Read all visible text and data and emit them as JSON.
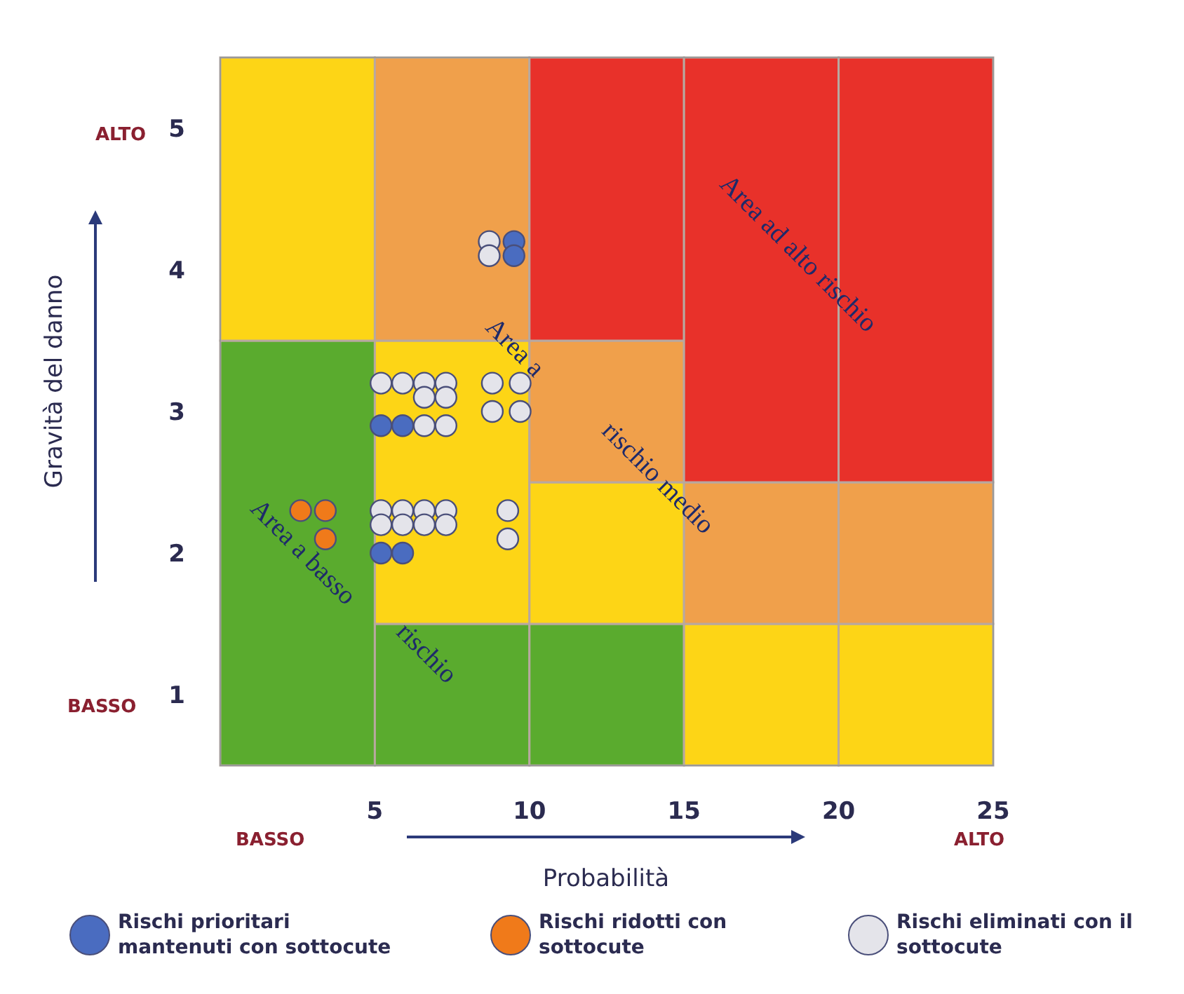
{
  "chart_data": {
    "type": "scatter",
    "xlabel": "Probabilità",
    "ylabel": "Gravità del danno",
    "xlim": [
      0,
      25
    ],
    "xticks": [
      5,
      10,
      15,
      20,
      25
    ],
    "ylim": [
      0.5,
      5.5
    ],
    "yticks": [
      1,
      2,
      3,
      4,
      5
    ],
    "marker": "circle",
    "legend": "bottom",
    "series": [
      {
        "type": "bar",
        "color": "#5aab2e",
        "x": [
          2.5,
          7.5,
          12.5
        ],
        "base": [
          0.5,
          0.5,
          0.5
        ],
        "values": [
          3,
          1,
          1
        ]
      },
      {
        "type": "bar",
        "color": "#fdd516",
        "x": [
          2.5,
          7.5,
          12.5,
          17.5,
          22.5
        ],
        "base": [
          3.5,
          1.5,
          1.5,
          0.5,
          0.5
        ],
        "values": [
          2,
          2,
          1,
          1,
          1
        ]
      },
      {
        "type": "bar",
        "color": "#f0a04b",
        "x": [
          7.5,
          12.5,
          17.5,
          22.5
        ],
        "base": [
          3.5,
          2.5,
          1.5,
          1.5
        ],
        "values": [
          2,
          1,
          1,
          1
        ]
      },
      {
        "type": "bar",
        "color": "#e8312a",
        "x": [
          12.5,
          17.5,
          22.5
        ],
        "base": [
          3.5,
          2.5,
          2.5
        ],
        "values": [
          2,
          3,
          3
        ]
      },
      {
        "name": "Rischi prioritari mantenuti con sottocute",
        "color": "#4a6cc0",
        "x": [
          9.5,
          9.5,
          5.2,
          5.9,
          5.2,
          5.9
        ],
        "values": [
          4.2,
          4.1,
          2.9,
          2.9,
          2.0,
          2.0
        ]
      },
      {
        "name": "Rischi ridotti con sottocute",
        "color": "#f07a1a",
        "x": [
          2.6,
          3.4,
          3.4
        ],
        "values": [
          2.3,
          2.3,
          2.1
        ]
      },
      {
        "name": "Rischi eliminati con il sottocute",
        "color": "#e4e4ea",
        "x": [
          8.7,
          8.7,
          5.2,
          5.9,
          6.6,
          7.3,
          6.6,
          7.3,
          6.6,
          7.3,
          8.8,
          9.7,
          8.8,
          9.7,
          5.2,
          5.9,
          6.6,
          7.3,
          5.2,
          5.9,
          6.6,
          7.3,
          9.3,
          9.3
        ],
        "values": [
          4.2,
          4.1,
          3.2,
          3.2,
          3.2,
          3.2,
          3.1,
          3.1,
          2.9,
          2.9,
          3.2,
          3.2,
          3.0,
          3.0,
          2.3,
          2.3,
          2.3,
          2.3,
          2.2,
          2.2,
          2.2,
          2.2,
          2.3,
          2.1
        ]
      }
    ],
    "annotations": [
      "ALTO",
      "BASSO",
      "BASSO",
      "ALTO",
      "Area ad alto rischio",
      "Area a",
      "rischio medio",
      "Area a basso",
      "rischio"
    ]
  }
}
